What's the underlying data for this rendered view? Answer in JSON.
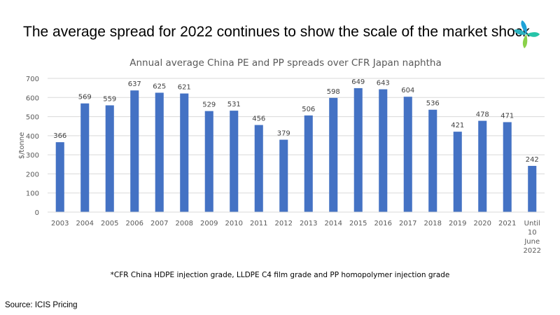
{
  "slide": {
    "title": "The average spread for 2022 continues to show the scale of the market shock",
    "footnote": "*CFR China HDPE injection grade, LLDPE C4 film grade and PP homopolymer injection grade",
    "source": "Source: ICIS Pricing"
  },
  "logo": {
    "icon": "icis-flower-logo-icon",
    "colors": [
      "#1fa3d8",
      "#27c4a8",
      "#8ad14a"
    ]
  },
  "chart_data": {
    "type": "bar",
    "title": "Annual average China PE and PP spreads over CFR Japan naphtha",
    "xlabel": "",
    "ylabel": "$/tonne",
    "ylim": [
      0,
      700
    ],
    "yticks": [
      0,
      100,
      200,
      300,
      400,
      500,
      600,
      700
    ],
    "grid": true,
    "legend": "none",
    "bar_color": "#4472c4",
    "categories": [
      "2003",
      "2004",
      "2005",
      "2006",
      "2007",
      "2008",
      "2009",
      "2010",
      "2011",
      "2012",
      "2013",
      "2014",
      "2015",
      "2016",
      "2017",
      "2018",
      "2019",
      "2020",
      "2021",
      "Until 10 June 2022"
    ],
    "category_lines": [
      [
        "2003"
      ],
      [
        "2004"
      ],
      [
        "2005"
      ],
      [
        "2006"
      ],
      [
        "2007"
      ],
      [
        "2008"
      ],
      [
        "2009"
      ],
      [
        "2010"
      ],
      [
        "2011"
      ],
      [
        "2012"
      ],
      [
        "2013"
      ],
      [
        "2014"
      ],
      [
        "2015"
      ],
      [
        "2016"
      ],
      [
        "2017"
      ],
      [
        "2018"
      ],
      [
        "2019"
      ],
      [
        "2020"
      ],
      [
        "2021"
      ],
      [
        "Until",
        "10",
        "June",
        "2022"
      ]
    ],
    "values": [
      366,
      569,
      559,
      637,
      625,
      621,
      529,
      531,
      456,
      379,
      506,
      598,
      649,
      643,
      604,
      536,
      421,
      478,
      471,
      242
    ],
    "data_labels": [
      "366",
      "569",
      "559",
      "637",
      "625",
      "621",
      "529",
      "531",
      "456",
      "379",
      "506",
      "598",
      "649",
      "643",
      "604",
      "536",
      "421",
      "478",
      "471",
      "242"
    ]
  }
}
